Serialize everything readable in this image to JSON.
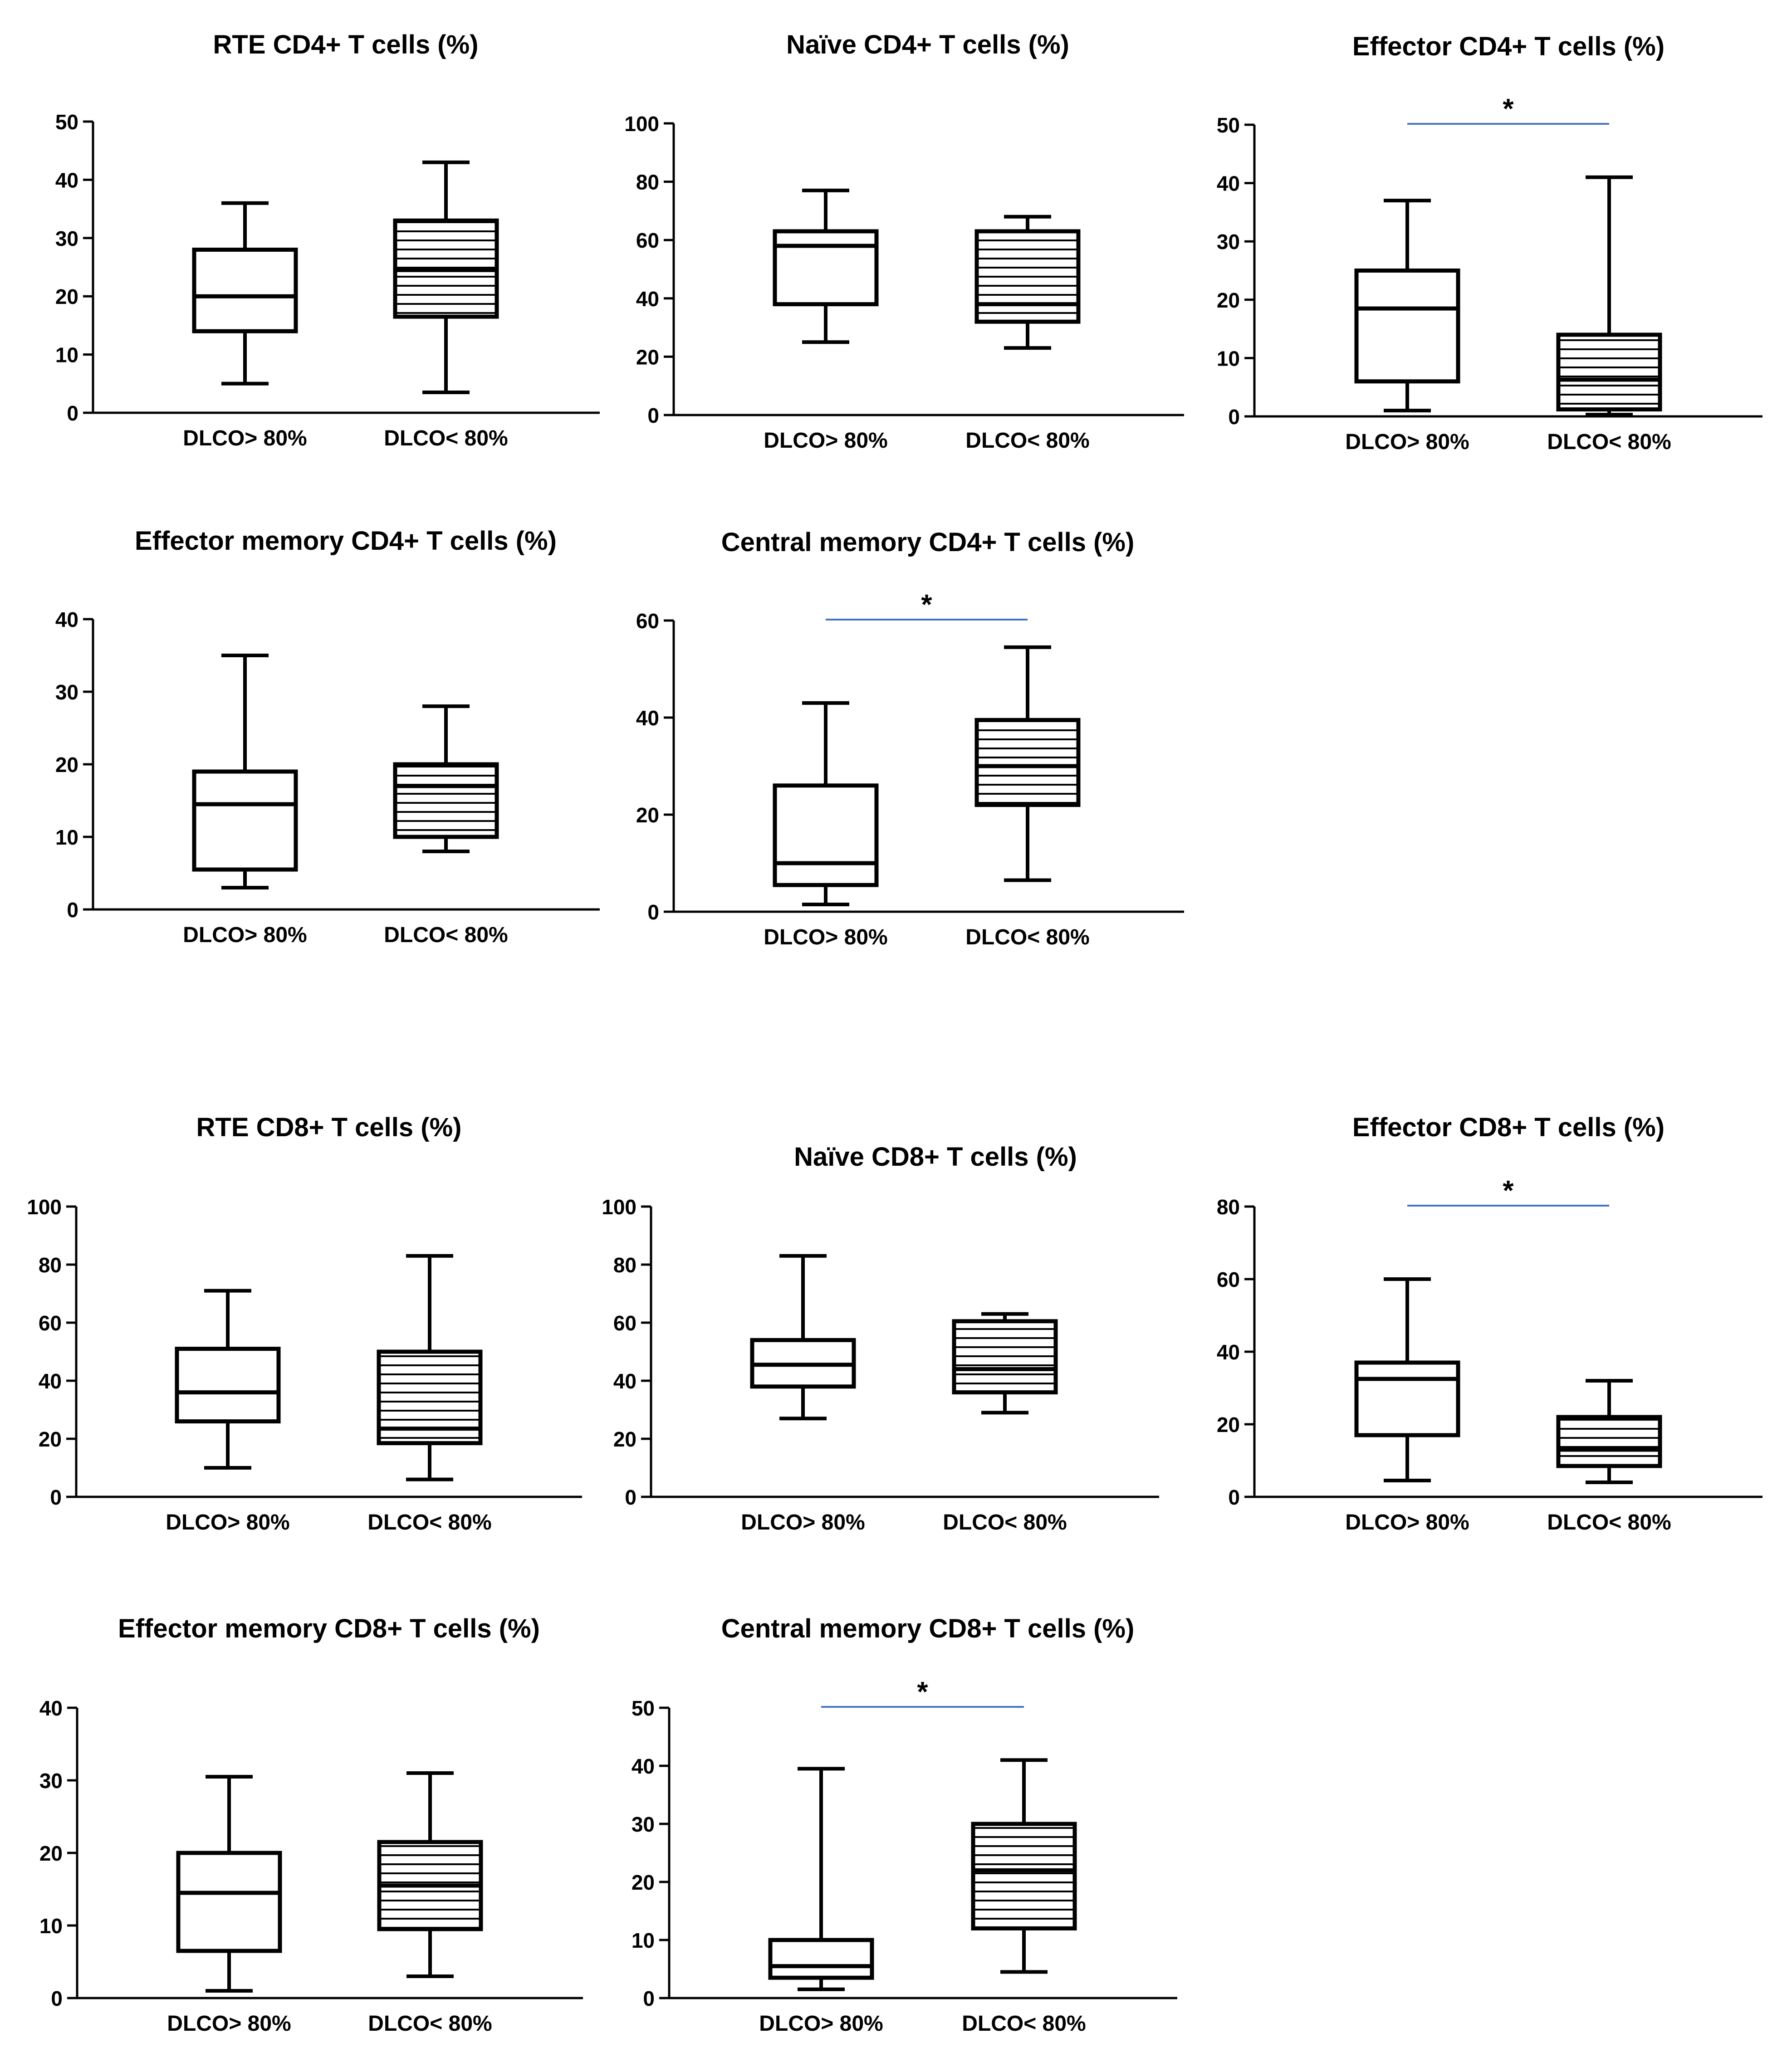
{
  "colors": {
    "stroke": "#000000",
    "hatch": "#000000",
    "significance_line": "#4472c4",
    "background": "#ffffff"
  },
  "chart_data": [
    {
      "type": "box",
      "title": "RTE CD4+ T cells (%)",
      "categories": [
        "DLCO> 80%",
        "DLCO< 80%"
      ],
      "ylim": [
        0,
        50
      ],
      "yticks": [
        0,
        10,
        20,
        30,
        40,
        50
      ],
      "boxes": [
        {
          "min": 5,
          "q1": 14,
          "median": 20,
          "q3": 28,
          "max": 36,
          "hatched": false
        },
        {
          "min": 3.5,
          "q1": 16.5,
          "median": 24.5,
          "q3": 33,
          "max": 43,
          "hatched": true
        }
      ],
      "significance": ""
    },
    {
      "type": "box",
      "title": "Naïve CD4+ T cells (%)",
      "categories": [
        "DLCO> 80%",
        "DLCO< 80%"
      ],
      "ylim": [
        0,
        100
      ],
      "yticks": [
        0,
        20,
        40,
        60,
        80,
        100
      ],
      "boxes": [
        {
          "min": 25,
          "q1": 38,
          "median": 58,
          "q3": 63,
          "max": 77,
          "hatched": false
        },
        {
          "min": 23,
          "q1": 32,
          "median": 38,
          "q3": 63,
          "max": 68,
          "hatched": true
        }
      ],
      "significance": ""
    },
    {
      "type": "box",
      "title": "Effector CD4+ T cells (%)",
      "categories": [
        "DLCO> 80%",
        "DLCO< 80%"
      ],
      "ylim": [
        0,
        50
      ],
      "yticks": [
        0,
        10,
        20,
        30,
        40,
        50
      ],
      "boxes": [
        {
          "min": 1,
          "q1": 6,
          "median": 18.5,
          "q3": 25,
          "max": 37,
          "hatched": false
        },
        {
          "min": 0.3,
          "q1": 1.2,
          "median": 6.3,
          "q3": 14,
          "max": 41,
          "hatched": true
        }
      ],
      "significance": "*"
    },
    {
      "type": "box",
      "title": "Effector memory CD4+ T cells (%)",
      "categories": [
        "DLCO> 80%",
        "DLCO< 80%"
      ],
      "ylim": [
        0,
        40
      ],
      "yticks": [
        0,
        10,
        20,
        30,
        40
      ],
      "boxes": [
        {
          "min": 3,
          "q1": 5.5,
          "median": 14.5,
          "q3": 19,
          "max": 35,
          "hatched": false
        },
        {
          "min": 8,
          "q1": 10,
          "median": 17,
          "q3": 20,
          "max": 28,
          "hatched": true
        }
      ],
      "significance": ""
    },
    {
      "type": "box",
      "title": "Central memory CD4+ T cells (%)",
      "categories": [
        "DLCO> 80%",
        "DLCO< 80%"
      ],
      "ylim": [
        0,
        60
      ],
      "yticks": [
        0,
        20,
        40,
        60
      ],
      "boxes": [
        {
          "min": 1.5,
          "q1": 5.5,
          "median": 10,
          "q3": 26,
          "max": 43,
          "hatched": false
        },
        {
          "min": 6.5,
          "q1": 22,
          "median": 30,
          "q3": 39.5,
          "max": 54.5,
          "hatched": true
        }
      ],
      "significance": "*"
    },
    {
      "type": "box",
      "title": "RTE CD8+ T cells (%)",
      "categories": [
        "DLCO> 80%",
        "DLCO< 80%"
      ],
      "ylim": [
        0,
        100
      ],
      "yticks": [
        0,
        20,
        40,
        60,
        80,
        100
      ],
      "boxes": [
        {
          "min": 10,
          "q1": 26,
          "median": 36,
          "q3": 51,
          "max": 71,
          "hatched": false
        },
        {
          "min": 6,
          "q1": 18.5,
          "median": 23.5,
          "q3": 50,
          "max": 83,
          "hatched": true
        }
      ],
      "significance": ""
    },
    {
      "type": "box",
      "title": "Naïve CD8+ T cells (%)",
      "categories": [
        "DLCO> 80%",
        "DLCO< 80%"
      ],
      "ylim": [
        0,
        100
      ],
      "yticks": [
        0,
        20,
        40,
        60,
        80,
        100
      ],
      "boxes": [
        {
          "min": 27,
          "q1": 38,
          "median": 45.5,
          "q3": 54,
          "max": 83,
          "hatched": false
        },
        {
          "min": 29,
          "q1": 36,
          "median": 44,
          "q3": 60.5,
          "max": 63,
          "hatched": true
        }
      ],
      "significance": ""
    },
    {
      "type": "box",
      "title": "Effector CD8+ T cells (%)",
      "categories": [
        "DLCO> 80%",
        "DLCO< 80%"
      ],
      "ylim": [
        0,
        80
      ],
      "yticks": [
        0,
        20,
        40,
        60,
        80
      ],
      "boxes": [
        {
          "min": 4.5,
          "q1": 17,
          "median": 32.5,
          "q3": 37,
          "max": 60,
          "hatched": false
        },
        {
          "min": 4,
          "q1": 8.5,
          "median": 13,
          "q3": 22,
          "max": 32,
          "hatched": true
        }
      ],
      "significance": "*"
    },
    {
      "type": "box",
      "title": "Effector memory CD8+ T cells (%)",
      "categories": [
        "DLCO> 80%",
        "DLCO< 80%"
      ],
      "ylim": [
        0,
        40
      ],
      "yticks": [
        0,
        10,
        20,
        30,
        40
      ],
      "boxes": [
        {
          "min": 1,
          "q1": 6.5,
          "median": 14.5,
          "q3": 20,
          "max": 30.5,
          "hatched": false
        },
        {
          "min": 3,
          "q1": 9.5,
          "median": 15.5,
          "q3": 21.5,
          "max": 31,
          "hatched": true
        }
      ],
      "significance": ""
    },
    {
      "type": "box",
      "title": "Central memory CD8+ T cells (%)",
      "categories": [
        "DLCO> 80%",
        "DLCO< 80%"
      ],
      "ylim": [
        0,
        50
      ],
      "yticks": [
        0,
        10,
        20,
        30,
        40,
        50
      ],
      "boxes": [
        {
          "min": 1.5,
          "q1": 3.5,
          "median": 5.5,
          "q3": 10,
          "max": 39.5,
          "hatched": false
        },
        {
          "min": 4.5,
          "q1": 12,
          "median": 22,
          "q3": 30,
          "max": 41,
          "hatched": true
        }
      ],
      "significance": "*"
    }
  ]
}
